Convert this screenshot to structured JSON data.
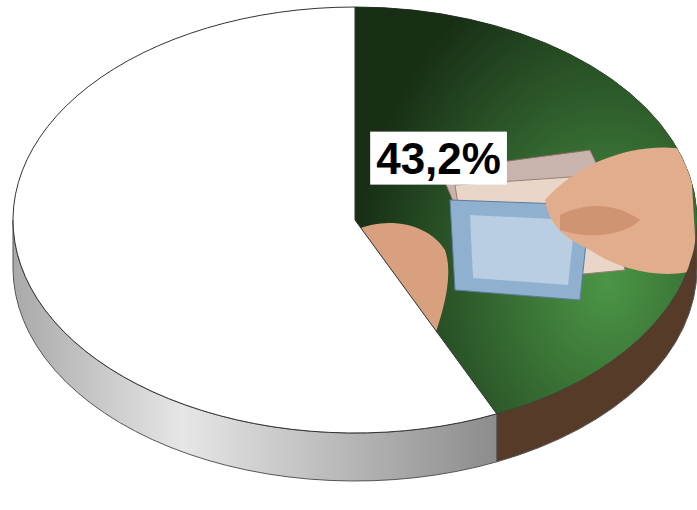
{
  "chart_data": {
    "type": "pie",
    "values": [
      43.2,
      56.8
    ],
    "value_labels": [
      "43,2%",
      null
    ],
    "colors": [
      "#2f5e2c",
      "#ffffff"
    ],
    "data_labels": true
  }
}
